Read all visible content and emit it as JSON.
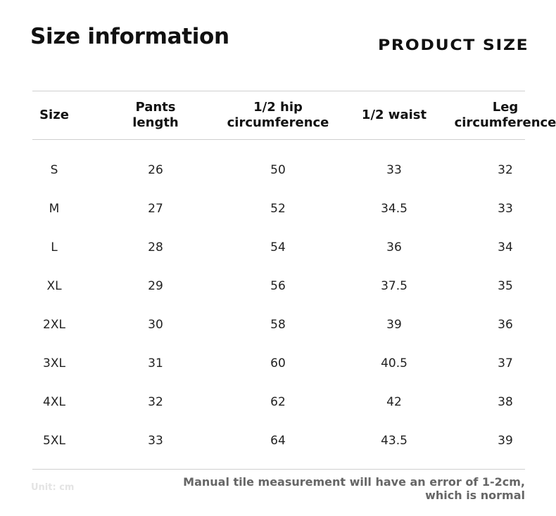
{
  "header": {
    "title": "Size information",
    "label": "PRODUCT SIZE"
  },
  "table": {
    "columns": [
      "Size",
      "Pants length",
      "1/2 hip circumference",
      "1/2 waist",
      "Leg circumference"
    ],
    "rows": [
      [
        "S",
        26,
        50,
        33,
        32
      ],
      [
        "M",
        27,
        52,
        34.5,
        33
      ],
      [
        "L",
        28,
        54,
        36,
        34
      ],
      [
        "XL",
        29,
        56,
        37.5,
        35
      ],
      [
        "2XL",
        30,
        58,
        39,
        36
      ],
      [
        "3XL",
        31,
        60,
        40.5,
        37
      ],
      [
        "4XL",
        32,
        62,
        42,
        38
      ],
      [
        "5XL",
        33,
        64,
        43.5,
        39
      ]
    ]
  },
  "footer": {
    "unit": "Unit: cm",
    "note": "Manual tile measurement will have an error of 1-2cm, which is normal"
  }
}
